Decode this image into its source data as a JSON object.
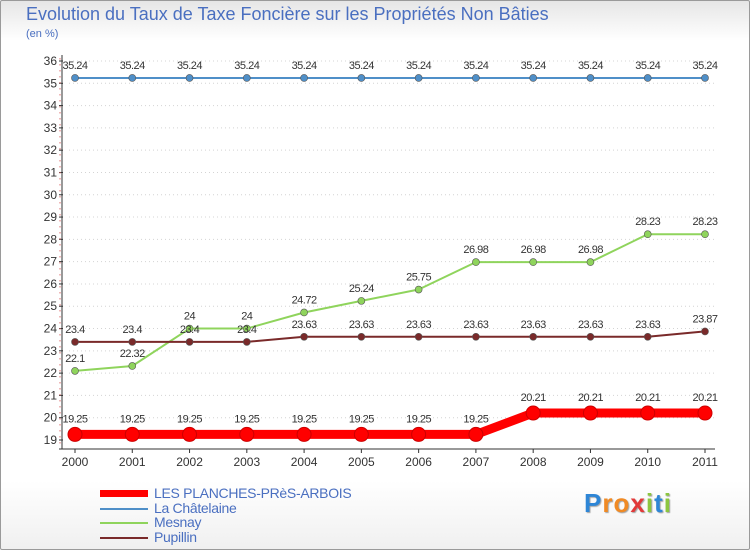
{
  "header": {
    "title": "Evolution du Taux de Taxe Foncière sur les Propriétés Non Bâties",
    "subtitle": "(en %)"
  },
  "chart_data": {
    "type": "line",
    "categories": [
      "2000",
      "2001",
      "2002",
      "2003",
      "2004",
      "2005",
      "2006",
      "2007",
      "2008",
      "2009",
      "2010",
      "2011"
    ],
    "ylim": [
      19,
      36
    ],
    "yticks": [
      19,
      20,
      21,
      22,
      23,
      24,
      25,
      26,
      27,
      28,
      29,
      30,
      31,
      32,
      33,
      34,
      35,
      36
    ],
    "grid": "horizontal dotted",
    "legend_placement": "bottom-left",
    "series": [
      {
        "name": "LES PLANCHES-PRèS-ARBOIS",
        "color": "#ff0000",
        "values": [
          19.25,
          19.25,
          19.25,
          19.25,
          19.25,
          19.25,
          19.25,
          19.25,
          20.21,
          20.21,
          20.21,
          20.21
        ],
        "labels": [
          "19.25",
          "19.25",
          "19.25",
          "19.25",
          "19.25",
          "19.25",
          "19.25",
          "19.25",
          "20.21",
          "20.21",
          "20.21",
          "20.21"
        ]
      },
      {
        "name": "La Châtelaine",
        "color": "#4f8fc8",
        "values": [
          35.24,
          35.24,
          35.24,
          35.24,
          35.24,
          35.24,
          35.24,
          35.24,
          35.24,
          35.24,
          35.24,
          35.24
        ],
        "labels": [
          "35.24",
          "35.24",
          "35.24",
          "35.24",
          "35.24",
          "35.24",
          "35.24",
          "35.24",
          "35.24",
          "35.24",
          "35.24",
          "35.24"
        ]
      },
      {
        "name": "Mesnay",
        "color": "#8fd45c",
        "values": [
          22.1,
          22.32,
          24,
          24,
          24.72,
          25.24,
          25.75,
          26.98,
          26.98,
          26.98,
          28.23,
          28.23
        ],
        "labels": [
          "22.1",
          "22.32",
          "24",
          "24",
          "24.72",
          "25.24",
          "25.75",
          "26.98",
          "26.98",
          "26.98",
          "28.23",
          "28.23"
        ]
      },
      {
        "name": "Pupillin",
        "color": "#7a2a2a",
        "values": [
          23.4,
          23.4,
          23.4,
          23.4,
          23.63,
          23.63,
          23.63,
          23.63,
          23.63,
          23.63,
          23.63,
          23.87
        ],
        "labels": [
          "23.4",
          "23.4",
          "23.4",
          "23.4",
          "23.63",
          "23.63",
          "23.63",
          "23.63",
          "23.63",
          "23.63",
          "23.63",
          "23.87"
        ]
      }
    ]
  },
  "legend": {
    "items": [
      {
        "label": "LES PLANCHES-PRèS-ARBOIS",
        "color": "#ff0000"
      },
      {
        "label": "La Châtelaine",
        "color": "#4f8fc8"
      },
      {
        "label": "Mesnay",
        "color": "#8fd45c"
      },
      {
        "label": "Pupillin",
        "color": "#7a2a2a"
      }
    ]
  },
  "logo": {
    "letters": [
      "P",
      "r",
      "o",
      "x",
      "i",
      "t",
      "i"
    ],
    "colors": [
      "#2e86d6",
      "#f08a24",
      "#f08a24",
      "#e23a3a",
      "#8cc63f",
      "#2e86d6",
      "#8cc63f"
    ]
  }
}
